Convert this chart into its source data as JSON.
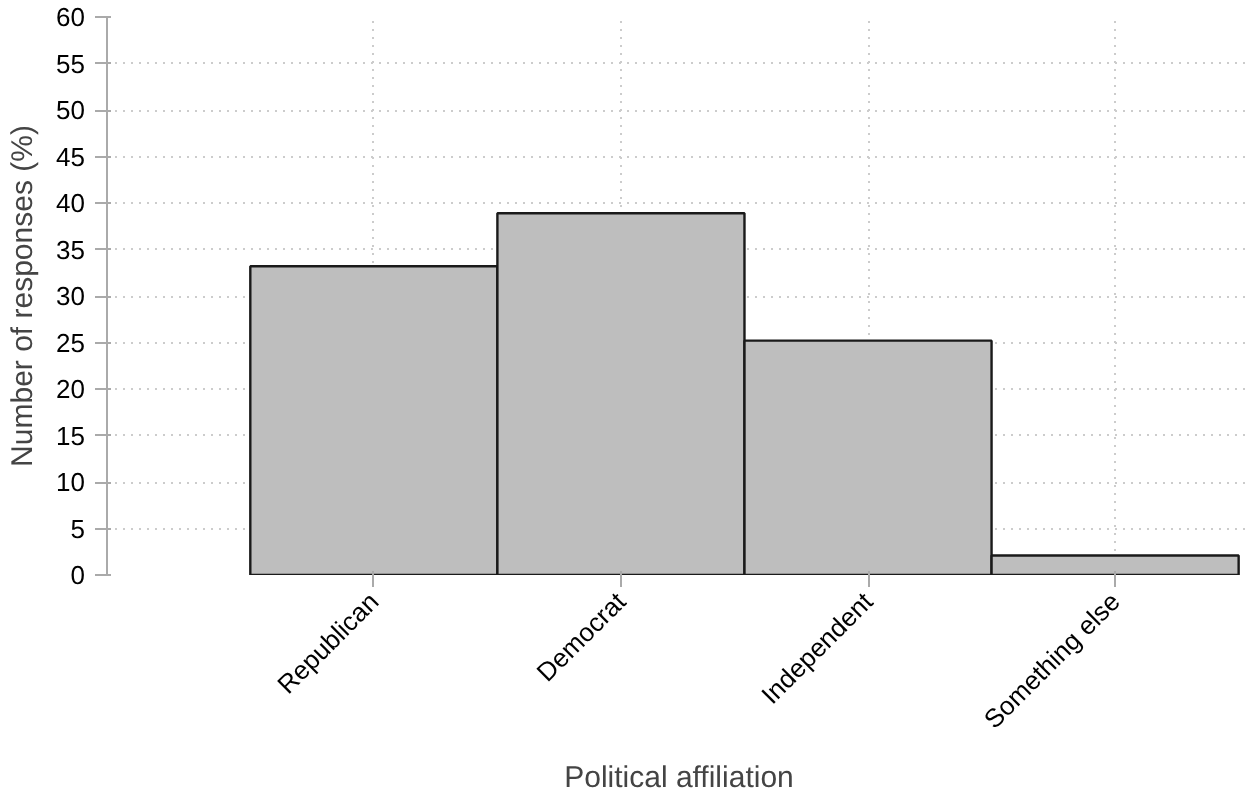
{
  "chart_data": {
    "type": "bar",
    "xlabel": "Political affiliation",
    "ylabel": "Number of responses (%)",
    "categories": [
      "Republican",
      "Democrat",
      "Independent",
      "Something else"
    ],
    "values": [
      33.2,
      38.9,
      25.2,
      2.1
    ],
    "color": "#bebebe",
    "ylim": [
      0,
      60
    ],
    "yticks": [
      0,
      5,
      10,
      15,
      20,
      25,
      30,
      35,
      40,
      45,
      50,
      55,
      60
    ],
    "grid": true
  }
}
